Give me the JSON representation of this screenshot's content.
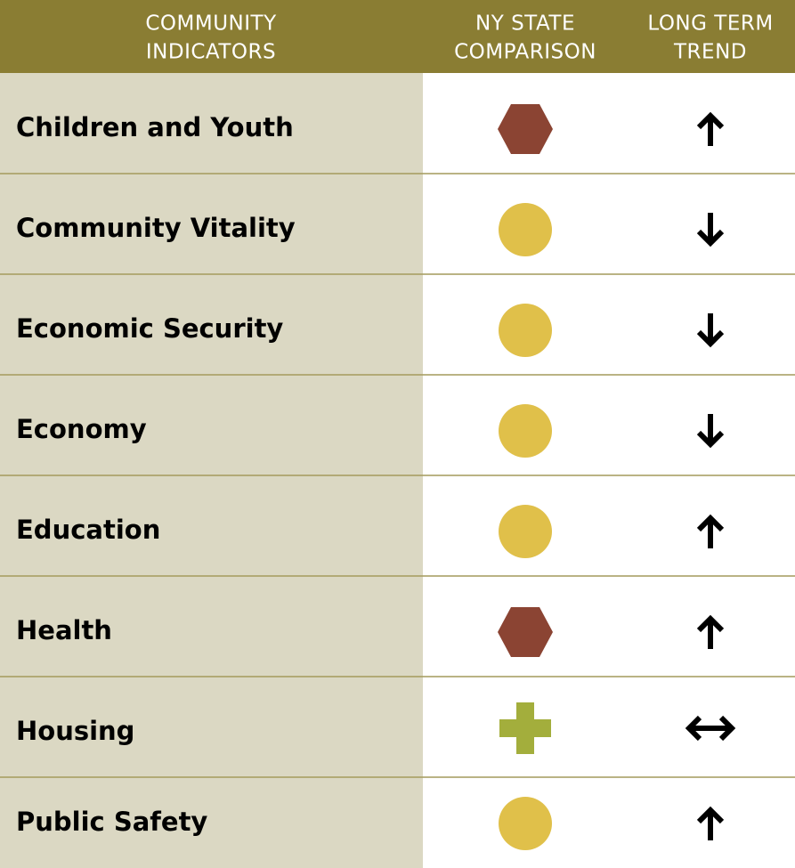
{
  "table": {
    "header": [
      [
        "COMMUNITY",
        "INDICATORS"
      ],
      [
        "NY STATE",
        "COMPARISON"
      ],
      [
        "LONG TERM",
        "TREND"
      ]
    ],
    "rows": [
      "Children and Youth",
      "Community Vitality",
      "Economic Security",
      "Economy",
      "Education",
      "Health",
      "Housing",
      "Public Safety"
    ]
  }
}
